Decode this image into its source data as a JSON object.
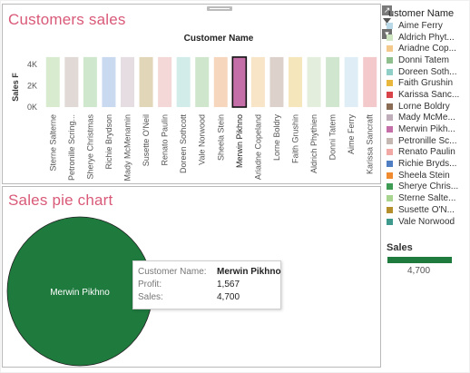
{
  "sheet_bar": {
    "title": "Customers sales",
    "column_header": "Customer Name",
    "y_axis_label": "Sales F"
  },
  "sheet_pie": {
    "title": "Sales pie chart",
    "slice_label": "Merwin Pikhno"
  },
  "toolbar": {
    "icons": [
      "expand-icon",
      "filter-icon",
      "dropdown-icon"
    ]
  },
  "legend": {
    "title": "ustomer Name",
    "items": [
      {
        "label": "Aime Ferry",
        "color": "#b9d9e9"
      },
      {
        "label": "Aldrich Phyt...",
        "color": "#cfe6c2"
      },
      {
        "label": "Ariadne Cop...",
        "color": "#f3c98c"
      },
      {
        "label": "Donni Tatem",
        "color": "#8fbf8c"
      },
      {
        "label": "Doreen Soth...",
        "color": "#8fcfc7"
      },
      {
        "label": "Faith Grushin",
        "color": "#e8b73c"
      },
      {
        "label": "Karissa Sanc...",
        "color": "#d9434a"
      },
      {
        "label": "Lorne Boldry",
        "color": "#8a6b53"
      },
      {
        "label": "Mady McMe...",
        "color": "#c0adba"
      },
      {
        "label": "Merwin Pikh...",
        "color": "#c46fa7"
      },
      {
        "label": "Petronille Sc...",
        "color": "#c5b8b3"
      },
      {
        "label": "Renato Paulin",
        "color": "#f2a9a6"
      },
      {
        "label": "Richie Bryds...",
        "color": "#4f7fc2"
      },
      {
        "label": "Sheela Stein",
        "color": "#f08b2f"
      },
      {
        "label": "Sherye Chris...",
        "color": "#3f9c55"
      },
      {
        "label": "Sterne Salte...",
        "color": "#a7d48f"
      },
      {
        "label": "Susette O'N...",
        "color": "#b48f2c"
      },
      {
        "label": "Vale Norwood",
        "color": "#3d9a8d"
      }
    ]
  },
  "size_legend": {
    "title": "Sales",
    "value": "4,700",
    "color": "#1f7a3e"
  },
  "tooltip": {
    "rows": [
      {
        "key": "Customer Name:",
        "value": "Merwin Pikhno"
      },
      {
        "key": "Profit:",
        "value": "1,567"
      },
      {
        "key": "Sales:",
        "value": "4,700"
      }
    ]
  },
  "pie_color": "#1f7a3e",
  "chart_data": [
    {
      "type": "bar",
      "title": "Customers sales",
      "xlabel": "Customer Name",
      "ylabel": "Sales F",
      "ylim": [
        0,
        5800
      ],
      "yticks": [
        0,
        2000,
        4000
      ],
      "ytick_labels": [
        "0K",
        "2K",
        "4K"
      ],
      "grid": false,
      "highlighted": "Merwin Pikhno",
      "categories": [
        "Sterne Salterne",
        "Petronille Scring...",
        "Sherye Christmas",
        "Richie Brydson",
        "Mady McMenamin",
        "Susette O'Neil",
        "Renato Paulin",
        "Doreen Sothcott",
        "Vale Norwood",
        "Sheela Stein",
        "Merwin Pikhno",
        "Ariadne Copeland",
        "Lorne Boldry",
        "Faith Grushin",
        "Aldrich Phythien",
        "Donni Tatem",
        "Aime Ferry",
        "Karissa Sancraft"
      ],
      "values": [
        4700,
        4700,
        4700,
        4700,
        4700,
        4700,
        4700,
        4700,
        4700,
        4700,
        4700,
        4700,
        4700,
        4700,
        4700,
        4700,
        4700,
        4700
      ],
      "colors": [
        "#d8ebce",
        "#e0d9d6",
        "#cfe7cc",
        "#c9d9ef",
        "#e6dde2",
        "#e2d6b8",
        "#f4d8d7",
        "#d2ece9",
        "#cfe6cc",
        "#f6d7bd",
        "#c46fa7",
        "#f8e4c6",
        "#ddd2cb",
        "#f5e6bb",
        "#e3eedc",
        "#d0e6cf",
        "#dfeef6",
        "#f3c9cb"
      ]
    },
    {
      "type": "pie",
      "title": "Sales pie chart",
      "slices": [
        {
          "label": "Merwin Pikhno",
          "value": 4700,
          "profit": 1567
        }
      ]
    }
  ]
}
